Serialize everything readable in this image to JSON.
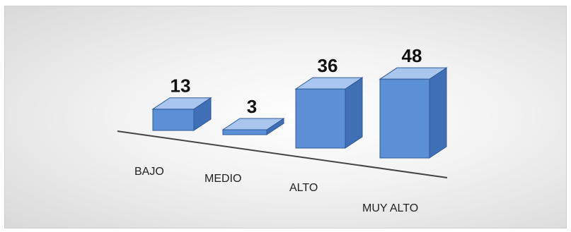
{
  "chart_data": {
    "type": "bar",
    "title": "",
    "xlabel": "",
    "ylabel": "",
    "categories": [
      "BAJO",
      "MEDIO",
      "ALTO",
      "MUY ALTO"
    ],
    "values": [
      13,
      3,
      36,
      48
    ],
    "ylim": [
      0,
      50
    ],
    "grid": false,
    "legend": "none",
    "style": "3d-column",
    "colors": {
      "bar_front": "#5b8fd6",
      "bar_top": "#a9c6ef",
      "bar_side": "#3f6fb4",
      "bar_edge": "#2f5a98",
      "axis": "#444444"
    }
  }
}
